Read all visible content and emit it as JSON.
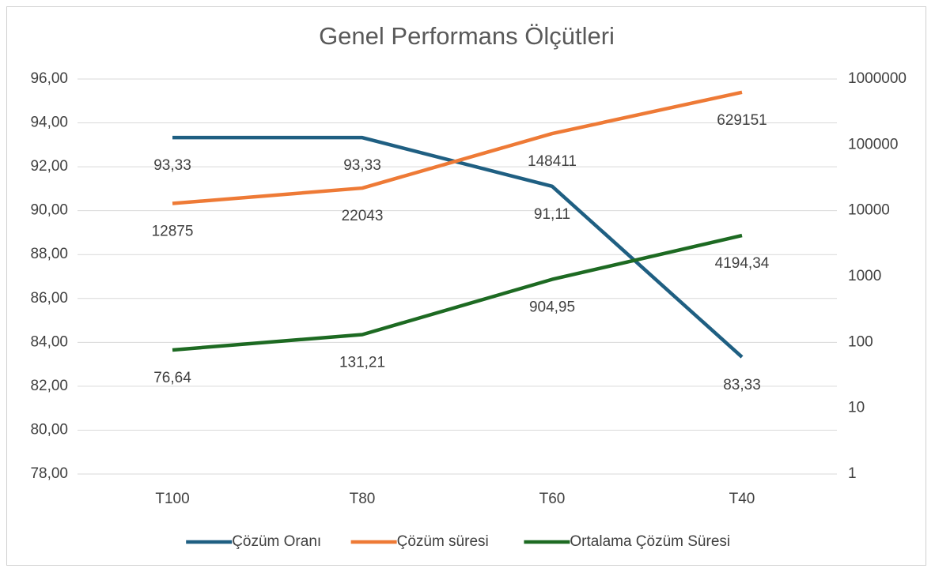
{
  "chart_data": {
    "type": "line",
    "title": "Genel Performans Ölçütleri",
    "categories": [
      "T100",
      "T80",
      "T60",
      "T40"
    ],
    "series": [
      {
        "name": "Çözüm Oranı",
        "color": "#1f5f82",
        "values": [
          93.33,
          93.33,
          91.11,
          83.33
        ],
        "value_labels": [
          "93,33",
          "93,33",
          "91,11",
          "83,33"
        ]
      },
      {
        "name": "Çözüm süresi",
        "color": "#ee7a36",
        "axis": "y2",
        "values": [
          12875,
          22043,
          148411,
          629151
        ]
      },
      {
        "name": "Ortalama Çözüm Süresi",
        "color": "#1d6a22",
        "axis": "y2",
        "values": [
          76.64,
          131.21,
          904.95,
          4194.34
        ],
        "value_labels": [
          "76,64",
          "131,21",
          "904,95",
          "4194,34"
        ]
      }
    ],
    "ylim": [
      78,
      96
    ],
    "yticks": [
      {
        "value": 78,
        "label": "78,00"
      },
      {
        "value": 80,
        "label": "80,00"
      },
      {
        "value": 82,
        "label": "82,00"
      },
      {
        "value": 84,
        "label": "84,00"
      },
      {
        "value": 86,
        "label": "86,00"
      },
      {
        "value": 88,
        "label": "88,00"
      },
      {
        "value": 90,
        "label": "90,00"
      },
      {
        "value": 92,
        "label": "92,00"
      },
      {
        "value": 94,
        "label": "94,00"
      },
      {
        "value": 96,
        "label": "96,00"
      }
    ],
    "y2lim": [
      1,
      1000000
    ],
    "y2ticks": [
      1,
      10,
      100,
      1000,
      10000,
      100000,
      1000000
    ],
    "y2scale": "log",
    "grid": true,
    "legend": "bottom"
  }
}
